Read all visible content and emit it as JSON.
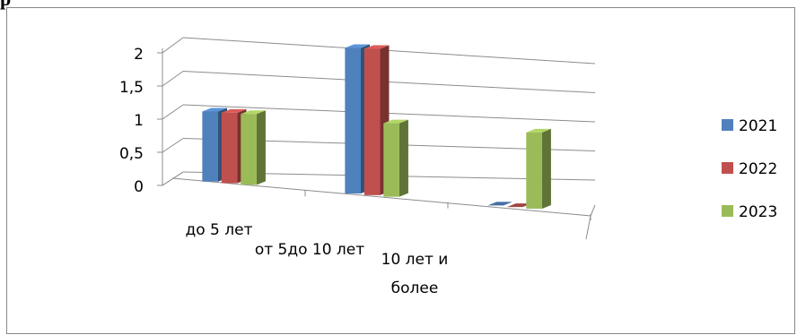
{
  "heading": "р",
  "chart_data": {
    "type": "bar",
    "categories": [
      "до 5 лет",
      "от 5до 10 лет",
      "10 лет и более"
    ],
    "category_lines": [
      [
        "до 5 лет"
      ],
      [
        "от 5до 10 лет"
      ],
      [
        "10 лет и",
        "более"
      ]
    ],
    "series": [
      {
        "name": "2021",
        "values": [
          1,
          2,
          0
        ],
        "color": "#4f81bd"
      },
      {
        "name": "2022",
        "values": [
          1,
          2,
          0
        ],
        "color": "#c0504d"
      },
      {
        "name": "2023",
        "values": [
          1,
          1,
          1
        ],
        "color": "#9bbb59"
      }
    ],
    "ylim": [
      0,
      2
    ],
    "yticks": [
      0,
      0.5,
      1,
      1.5,
      2
    ],
    "ytick_labels": [
      "0",
      "0,5",
      "1",
      "1,5",
      "2"
    ],
    "grid": true,
    "legend": "right",
    "style": "3d-perspective"
  }
}
